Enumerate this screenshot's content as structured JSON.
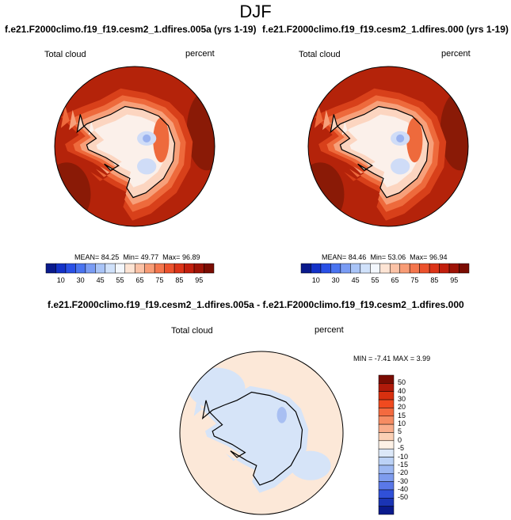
{
  "figure": {
    "title": "DJF"
  },
  "panels": [
    {
      "title": "f.e21.F2000climo.f19_f19.cesm2_1.dfires.005a (yrs 1-19)",
      "left_label": "Total cloud",
      "right_label": "percent",
      "stats": {
        "mean_label": "MEAN=",
        "mean": "84.25",
        "min_label": "Min=",
        "min": "49.77",
        "max_label": "Max=",
        "max": "96.89"
      }
    },
    {
      "title": "f.e21.F2000climo.f19_f19.cesm2_1.dfires.000 (yrs 1-19)",
      "left_label": "Total cloud",
      "right_label": "percent",
      "stats": {
        "mean_label": "MEAN=",
        "mean": "84.46",
        "min_label": "Min=",
        "min": "53.06",
        "max_label": "Max=",
        "max": "96.94"
      }
    }
  ],
  "diff_panel": {
    "title": "f.e21.F2000climo.f19_f19.cesm2_1.dfires.005a - f.e21.F2000climo.f19_f19.cesm2_1.dfires.000",
    "left_label": "Total cloud",
    "right_label": "percent",
    "stats": {
      "min_label": "MIN =",
      "min": "-7.41",
      "max_label": "MAX =",
      "max": "3.99"
    }
  },
  "colorbar_abs": {
    "ticks": [
      "10",
      "30",
      "45",
      "55",
      "65",
      "75",
      "85",
      "95"
    ],
    "colors": [
      "#0a1a8c",
      "#1432c8",
      "#2a50e6",
      "#4a74f0",
      "#7a9cf4",
      "#a9c4f7",
      "#d0e1fa",
      "#f3f7fd",
      "#fde4d4",
      "#fbc2a6",
      "#f89c76",
      "#f4764d",
      "#ec522d",
      "#dc3418",
      "#c21f0d",
      "#9e1306",
      "#7a0c02"
    ]
  },
  "colorbar_diff": {
    "ticks": [
      "50",
      "40",
      "30",
      "20",
      "15",
      "10",
      "5",
      "0",
      "-5",
      "-10",
      "-15",
      "-20",
      "-30",
      "-40",
      "-50"
    ],
    "colors": [
      "#7a0c02",
      "#b01a0a",
      "#d8300f",
      "#f04a1f",
      "#f46a3f",
      "#f68c63",
      "#f9ad8b",
      "#fbd0b5",
      "#fdf1e6",
      "#dce8f8",
      "#bcd2f6",
      "#9db8f2",
      "#7e9cee",
      "#5a78e8",
      "#3050d8",
      "#1a34b4",
      "#0a1a8c"
    ]
  },
  "map_colors": {
    "ocean_dark": "#8a1a06",
    "ocean": "#b4230a",
    "ring1": "#d8401a",
    "ring2": "#ee6a3c",
    "ring3": "#f7a07a",
    "ring4": "#fcd5c0",
    "inner": "#fbf0ea",
    "blue_light": "#cfdcf7",
    "blue_mid": "#9ab2ef",
    "diff_bg": "#fce8d8",
    "diff_blue": "#d6e4f8",
    "diff_blue_mid": "#a8bff2",
    "coast": "#000000"
  }
}
